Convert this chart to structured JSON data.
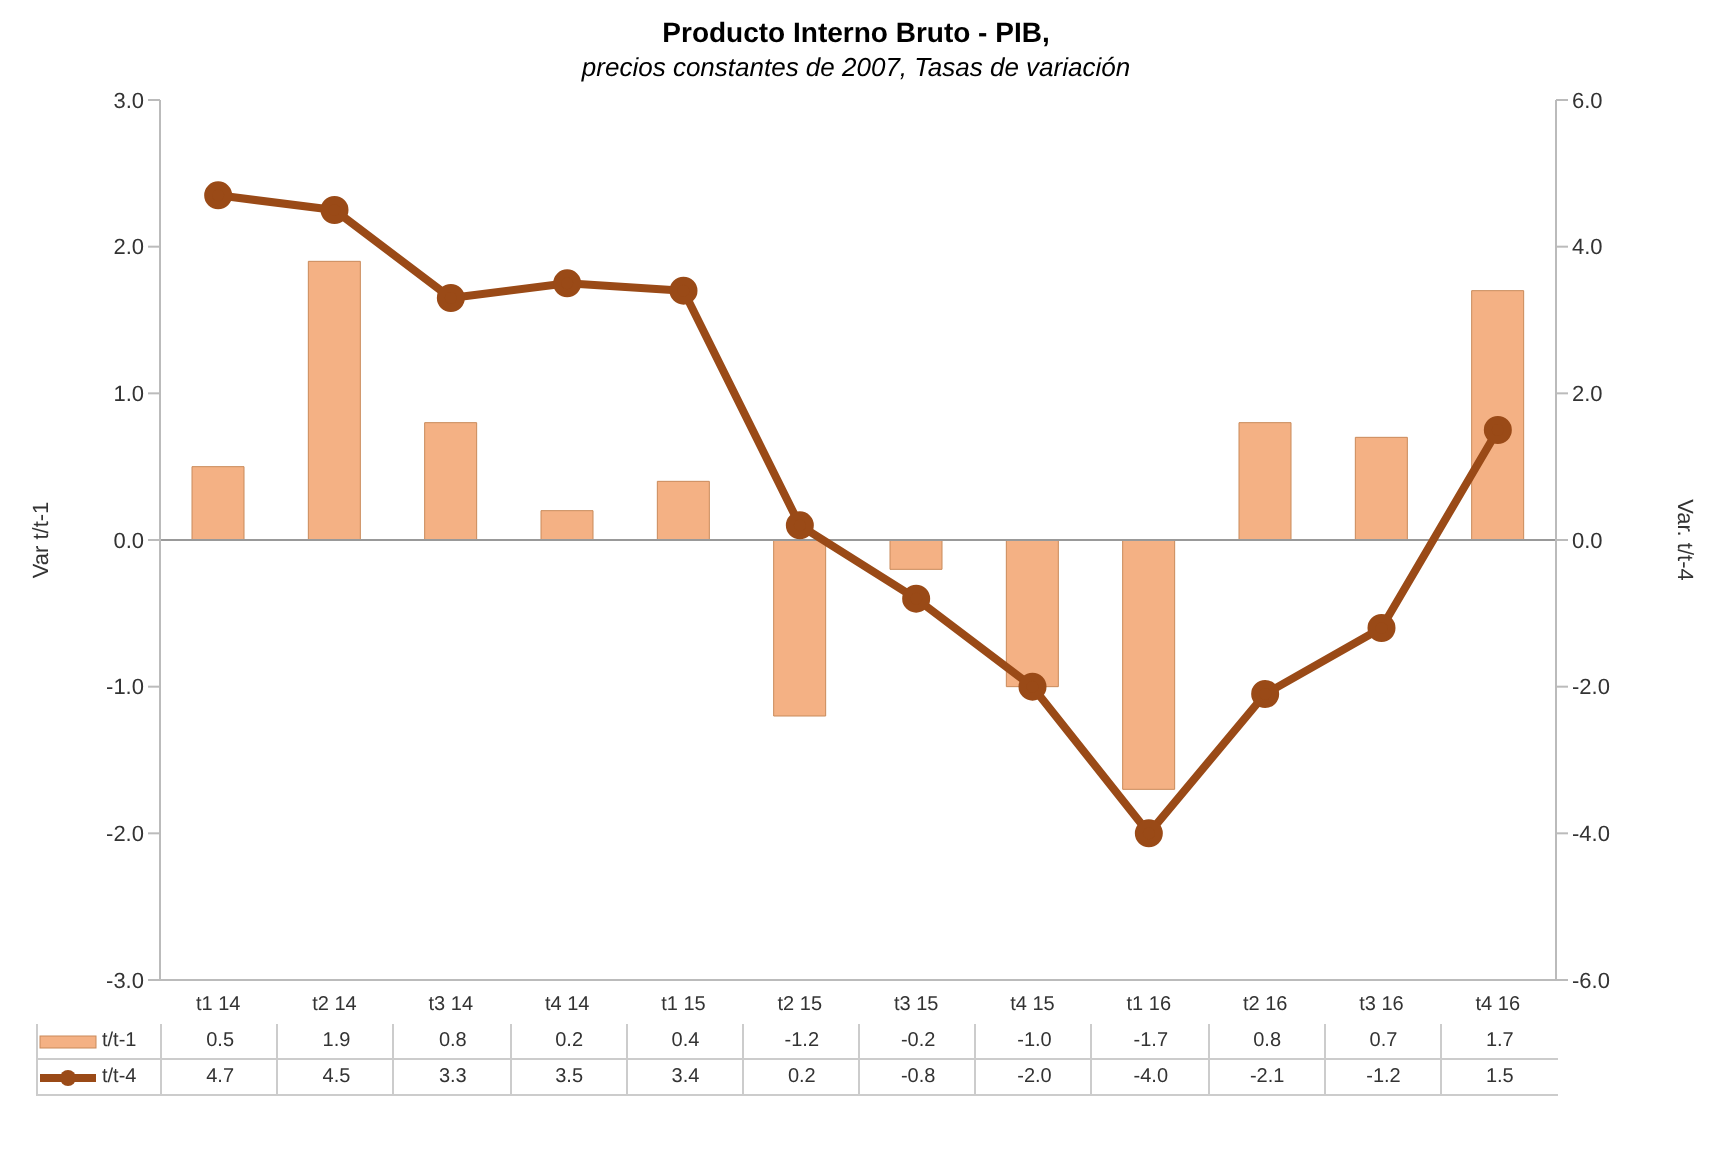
{
  "chart_data": {
    "type": "bar",
    "title": "Producto Interno Bruto - PIB,",
    "subtitle": "precios constantes de 2007, Tasas de variación",
    "ylabel": "Var t/t-1",
    "y2label": "Var. t/t-4",
    "categories": [
      "t1 14",
      "t2 14",
      "t3 14",
      "t4 14",
      "t1 15",
      "t2 15",
      "t3 15",
      "t4 15",
      "t1 16",
      "t2 16",
      "t3 16",
      "t4 16"
    ],
    "series": [
      {
        "name": "t/t-1",
        "color": "#f4b184",
        "values": [
          0.5,
          1.9,
          0.8,
          0.2,
          0.4,
          -1.2,
          -0.2,
          -1.0,
          -1.7,
          0.8,
          0.7,
          1.7
        ],
        "value_labels": [
          "0.5",
          "1.9",
          "0.8",
          "0.2",
          "0.4",
          "-1.2",
          "-0.2",
          "-1.0",
          "-1.7",
          "0.8",
          "0.7",
          "1.7"
        ]
      },
      {
        "name": "t/t-4",
        "type": "line",
        "axis": "y2",
        "color": "#9a4a17",
        "values": [
          4.7,
          4.5,
          3.3,
          3.5,
          3.4,
          0.2,
          -0.8,
          -2.0,
          -4.0,
          -2.1,
          -1.2,
          1.5
        ],
        "value_labels": [
          "4.7",
          "4.5",
          "3.3",
          "3.5",
          "3.4",
          "0.2",
          "-0.8",
          "-2.0",
          "-4.0",
          "-2.1",
          "-1.2",
          "1.5"
        ]
      }
    ],
    "ylim": [
      -3,
      3
    ],
    "yticks": [
      {
        "value": -3,
        "label": "-3.0"
      },
      {
        "value": -2,
        "label": "-2.0"
      },
      {
        "value": -1,
        "label": "-1.0"
      },
      {
        "value": 0,
        "label": "0.0"
      },
      {
        "value": 1,
        "label": "1.0"
      },
      {
        "value": 2,
        "label": "2.0"
      },
      {
        "value": 3,
        "label": "3.0"
      }
    ],
    "y2lim": [
      -6,
      6
    ],
    "y2ticks": [
      {
        "value": -6,
        "label": "-6.0"
      },
      {
        "value": -4,
        "label": "-4.0"
      },
      {
        "value": -2,
        "label": "-2.0"
      },
      {
        "value": 0,
        "label": "0.0"
      },
      {
        "value": 2,
        "label": "2.0"
      },
      {
        "value": 4,
        "label": "4.0"
      },
      {
        "value": 6,
        "label": "6.0"
      }
    ],
    "ref_lines": [
      {
        "axis": "y",
        "value": 0,
        "color": "#999999"
      }
    ],
    "grid": false,
    "legend": "bottom",
    "marker": "circle",
    "line_style": "solid"
  }
}
